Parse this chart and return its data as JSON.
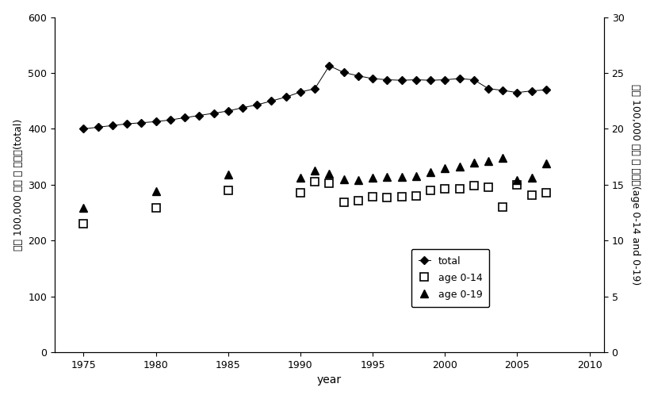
{
  "xlabel": "year",
  "ylabel_left": "인구 100,000 명당 암 발생율(total)",
  "ylabel_right": "인구 100,000 명당 암 발생율(age 0-14 and 0-19)",
  "years_total": [
    1975,
    1976,
    1977,
    1978,
    1979,
    1980,
    1981,
    1982,
    1983,
    1984,
    1985,
    1986,
    1987,
    1988,
    1989,
    1990,
    1991,
    1992,
    1993,
    1994,
    1995,
    1996,
    1997,
    1998,
    1999,
    2000,
    2001,
    2002,
    2003,
    2004,
    2005,
    2006,
    2007
  ],
  "total": [
    400,
    403,
    406,
    409,
    411,
    413,
    416,
    420,
    424,
    428,
    432,
    438,
    443,
    450,
    457,
    466,
    472,
    513,
    501,
    495,
    490,
    488,
    487,
    488,
    487,
    488,
    490,
    488,
    472,
    469,
    465,
    468,
    470
  ],
  "years_age": [
    1975,
    1980,
    1985,
    1990,
    1991,
    1992,
    1993,
    1994,
    1995,
    1996,
    1997,
    1998,
    1999,
    2000,
    2001,
    2002,
    2003,
    2004,
    2005,
    2006,
    2007
  ],
  "age_0_14": [
    230,
    258,
    290,
    285,
    305,
    302,
    268,
    272,
    278,
    277,
    278,
    280,
    290,
    292,
    292,
    298,
    295,
    260,
    300,
    282,
    285
  ],
  "age_0_19": [
    258,
    288,
    318,
    312,
    325,
    320,
    310,
    308,
    312,
    314,
    314,
    316,
    322,
    330,
    332,
    340,
    342,
    348,
    308,
    312,
    338
  ],
  "xlim": [
    1973,
    2011
  ],
  "ylim_left": [
    0,
    600
  ],
  "ylim_right": [
    0,
    30
  ],
  "xticks": [
    1975,
    1980,
    1985,
    1990,
    1995,
    2000,
    2005,
    2010
  ],
  "yticks_left": [
    0,
    100,
    200,
    300,
    400,
    500,
    600
  ],
  "yticks_right": [
    0,
    5,
    10,
    15,
    20,
    25,
    30
  ]
}
